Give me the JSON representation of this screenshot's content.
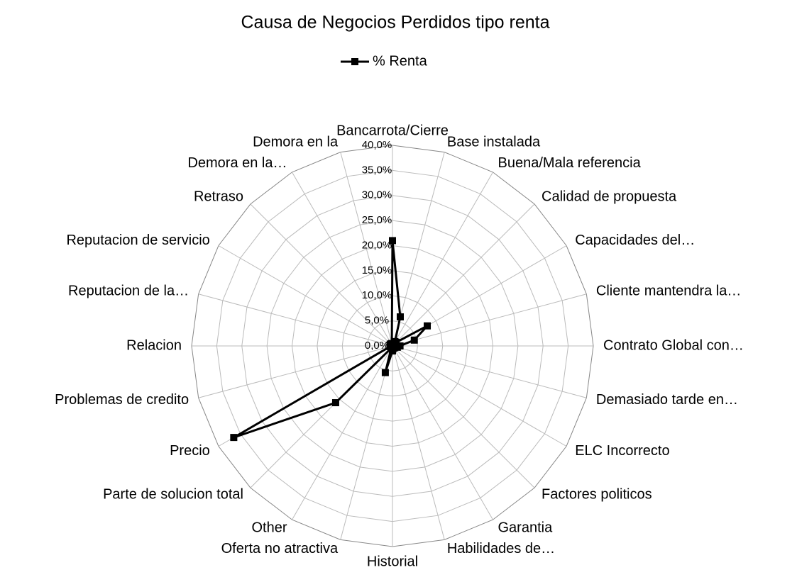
{
  "chart_data": {
    "type": "radar",
    "title": "Causa de Negocios Perdidos tipo renta",
    "categories": [
      "Bancarrota/Cierre",
      "Base instalada",
      "Buena/Mala referencia",
      "Calidad de propuesta",
      "Capacidades del…",
      "Cliente mantendra la…",
      "Contrato Global con…",
      "Demasiado tarde en…",
      "ELC Incorrecto",
      "Factores politicos",
      "Garantia",
      "Habilidades de…",
      "Historial",
      "Oferta no atractiva",
      "Other",
      "Parte de solucion total",
      "Precio",
      "Problemas de credito",
      "Relacion",
      "Reputacion de la…",
      "Reputacion de servicio",
      "Retraso",
      "Demora en la…",
      "Demora en la"
    ],
    "series": [
      {
        "name": "% Renta",
        "color": "#000000",
        "values": [
          21,
          6,
          1,
          1,
          8,
          4.5,
          1.5,
          1,
          0.5,
          0.5,
          0.5,
          0.5,
          1,
          5.5,
          0.5,
          16,
          36.5,
          0.5,
          0.5,
          0.5,
          0.5,
          0.5,
          0.5,
          0.5
        ]
      }
    ],
    "ylim": [
      0,
      40
    ],
    "yticks": [
      {
        "value": 0,
        "label": "0,0%"
      },
      {
        "value": 5,
        "label": "5,0%"
      },
      {
        "value": 10,
        "label": "10,0%"
      },
      {
        "value": 15,
        "label": "15,0%"
      },
      {
        "value": 20,
        "label": "20,0%"
      },
      {
        "value": 25,
        "label": "25,0%"
      },
      {
        "value": 30,
        "label": "30,0%"
      },
      {
        "value": 35,
        "label": "35,0%"
      },
      {
        "value": 40,
        "label": "40,0%"
      }
    ],
    "grid": true,
    "legend": "top"
  }
}
